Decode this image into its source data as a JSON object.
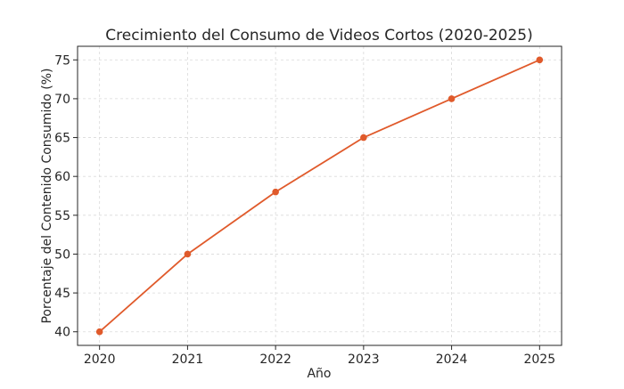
{
  "chart_data": {
    "type": "line",
    "title": "Crecimiento del Consumo de Videos Cortos (2020-2025)",
    "xlabel": "Año",
    "ylabel": "Porcentaje del Contenido Consumido (%)",
    "x": [
      2020,
      2021,
      2022,
      2023,
      2024,
      2025
    ],
    "x_tick_labels": [
      "2020",
      "2021",
      "2022",
      "2023",
      "2024",
      "2025"
    ],
    "series": [
      {
        "values": [
          40,
          50,
          58,
          65,
          70,
          75
        ],
        "color": "#e05a2b"
      }
    ],
    "xlim": [
      2019.75,
      2025.25
    ],
    "ylim": [
      38.25,
      76.75
    ],
    "y_ticks": [
      40,
      45,
      50,
      55,
      60,
      65,
      70,
      75
    ],
    "y_tick_labels": [
      "40",
      "45",
      "50",
      "55",
      "60",
      "65",
      "70",
      "75"
    ],
    "grid": true,
    "legend": false
  }
}
